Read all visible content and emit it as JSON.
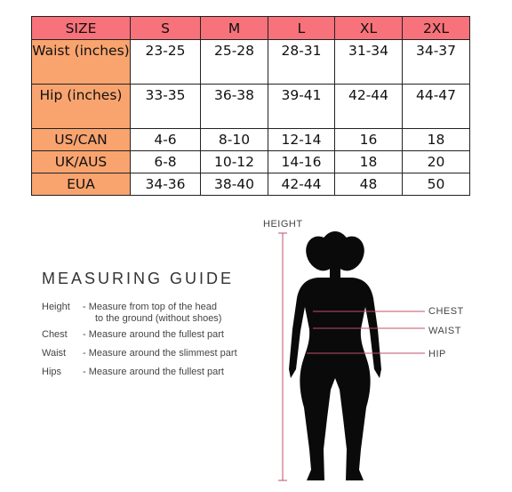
{
  "size_table": {
    "headers": [
      "SIZE",
      "S",
      "M",
      "L",
      "XL",
      "2XL"
    ],
    "rows": [
      {
        "label": "Waist (inches)",
        "values": [
          "23-25",
          "25-28",
          "28-31",
          "31-34",
          "34-37"
        ]
      },
      {
        "label": "Hip (inches)",
        "values": [
          "33-35",
          "36-38",
          "39-41",
          "42-44",
          "44-47"
        ]
      },
      {
        "label": "US/CAN",
        "values": [
          "4-6",
          "8-10",
          "12-14",
          "16",
          "18"
        ]
      },
      {
        "label": "UK/AUS",
        "values": [
          "6-8",
          "10-12",
          "14-16",
          "18",
          "20"
        ]
      },
      {
        "label": "EUA",
        "values": [
          "34-36",
          "38-40",
          "42-44",
          "48",
          "50"
        ]
      }
    ]
  },
  "guide": {
    "title": "MEASURING GUIDE",
    "items": [
      {
        "key": "Height",
        "desc": "-  Measure from top of the head",
        "desc2": "to the ground (without shoes)"
      },
      {
        "key": "Chest",
        "desc": "-  Measure around the fullest part"
      },
      {
        "key": "Waist",
        "desc": "-  Measure around the slimmest part"
      },
      {
        "key": "Hips",
        "desc": "-  Measure around the fullest part"
      }
    ]
  },
  "figure": {
    "height_label": "HEIGHT",
    "chest_label": "CHEST",
    "waist_label": "WAIST",
    "hip_label": "HIP",
    "line_color": "#c0506a"
  }
}
